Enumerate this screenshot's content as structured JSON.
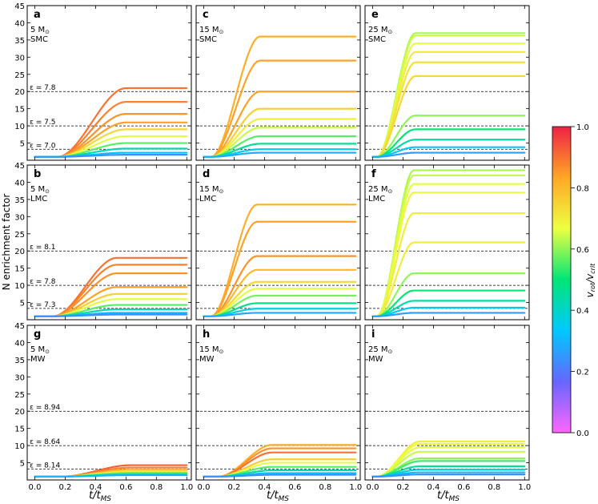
{
  "figure": {
    "ylabel": "N enrichment factor",
    "xlabel": "t/t",
    "xlabel_sub": "MS",
    "colorbar": {
      "label": "v",
      "label_sub1": "rot",
      "label_sep": "/v",
      "label_sub2": "crit",
      "ticks": [
        "0.0",
        "0.2",
        "0.4",
        "0.6",
        "0.8",
        "1.0"
      ],
      "range": [
        0.0,
        1.0
      ],
      "colormap": [
        "#ff66ff",
        "#6666ff",
        "#00c8ff",
        "#00e676",
        "#eeff41",
        "#ffa726",
        "#ee2244"
      ]
    }
  },
  "chart_data": {
    "type": "line",
    "xlim": [
      -0.05,
      1.03
    ],
    "ylim": [
      0,
      45
    ],
    "xticks": [
      "0.0",
      "0.2",
      "0.4",
      "0.6",
      "0.8",
      "1.0"
    ],
    "yticks": [
      "5",
      "10",
      "15",
      "20",
      "25",
      "30",
      "35",
      "40",
      "45"
    ],
    "grid": false,
    "panels": [
      {
        "letter": "a",
        "mass": "5 M",
        "mass_sym": "⊙",
        "galaxy": "SMC",
        "ref_lines": [
          {
            "label": "ε = 7.8",
            "y": 20.0
          },
          {
            "label": "ε = 7.5",
            "y": 10.0
          },
          {
            "label": "ε = 7.0",
            "y": 3.2
          }
        ],
        "onset": 0.15,
        "steep": 0.45,
        "tracks": [
          {
            "omega": 0.9,
            "ymax": 21.0
          },
          {
            "omega": 0.88,
            "ymax": 17.0
          },
          {
            "omega": 0.86,
            "ymax": 13.5
          },
          {
            "omega": 0.84,
            "ymax": 11.0
          },
          {
            "omega": 0.74,
            "ymax": 9.0
          },
          {
            "omega": 0.66,
            "ymax": 7.0
          },
          {
            "omega": 0.56,
            "ymax": 5.0
          },
          {
            "omega": 0.42,
            "ymax": 3.4
          },
          {
            "omega": 0.32,
            "ymax": 2.2
          },
          {
            "omega": 0.24,
            "ymax": 1.6
          }
        ]
      },
      {
        "letter": "c",
        "mass": "15 M",
        "mass_sym": "⊙",
        "galaxy": "SMC",
        "ref_lines": [
          {
            "label": "",
            "y": 20.0
          },
          {
            "label": "",
            "y": 10.0
          },
          {
            "label": "",
            "y": 3.2
          }
        ],
        "onset": 0.05,
        "steep": 0.32,
        "tracks": [
          {
            "omega": 0.82,
            "ymax": 36.0
          },
          {
            "omega": 0.84,
            "ymax": 29.0
          },
          {
            "omega": 0.84,
            "ymax": 20.0
          },
          {
            "omega": 0.76,
            "ymax": 15.0
          },
          {
            "omega": 0.7,
            "ymax": 12.0
          },
          {
            "omega": 0.64,
            "ymax": 9.5
          },
          {
            "omega": 0.56,
            "ymax": 7.0
          },
          {
            "omega": 0.46,
            "ymax": 4.8
          },
          {
            "omega": 0.36,
            "ymax": 3.2
          },
          {
            "omega": 0.28,
            "ymax": 2.2
          }
        ]
      },
      {
        "letter": "e",
        "mass": "25 M",
        "mass_sym": "⊙",
        "galaxy": "SMC",
        "ref_lines": [
          {
            "label": "",
            "y": 20.0
          },
          {
            "label": "",
            "y": 10.0
          },
          {
            "label": "",
            "y": 3.2
          }
        ],
        "onset": 0.03,
        "steep": 0.25,
        "tracks": [
          {
            "omega": 0.62,
            "ymax": 37.0
          },
          {
            "omega": 0.64,
            "ymax": 36.3
          },
          {
            "omega": 0.66,
            "ymax": 34.0
          },
          {
            "omega": 0.7,
            "ymax": 31.5
          },
          {
            "omega": 0.72,
            "ymax": 28.5
          },
          {
            "omega": 0.74,
            "ymax": 24.5
          },
          {
            "omega": 0.6,
            "ymax": 13.0
          },
          {
            "omega": 0.5,
            "ymax": 9.0
          },
          {
            "omega": 0.44,
            "ymax": 6.0
          },
          {
            "omega": 0.34,
            "ymax": 3.8
          },
          {
            "omega": 0.26,
            "ymax": 2.2
          }
        ]
      },
      {
        "letter": "b",
        "mass": "5 M",
        "mass_sym": "⊙",
        "galaxy": "LMC",
        "ref_lines": [
          {
            "label": "ε = 8.1",
            "y": 20.0
          },
          {
            "label": "ε = 7.8",
            "y": 10.0
          },
          {
            "label": "ε = 7.3",
            "y": 3.3
          }
        ],
        "onset": 0.12,
        "steep": 0.42,
        "tracks": [
          {
            "omega": 0.9,
            "ymax": 18.0
          },
          {
            "omega": 0.88,
            "ymax": 16.0
          },
          {
            "omega": 0.86,
            "ymax": 13.5
          },
          {
            "omega": 0.84,
            "ymax": 9.5
          },
          {
            "omega": 0.76,
            "ymax": 7.5
          },
          {
            "omega": 0.66,
            "ymax": 6.0
          },
          {
            "omega": 0.56,
            "ymax": 4.3
          },
          {
            "omega": 0.42,
            "ymax": 3.0
          },
          {
            "omega": 0.3,
            "ymax": 2.0
          },
          {
            "omega": 0.24,
            "ymax": 1.5
          }
        ]
      },
      {
        "letter": "d",
        "mass": "15 M",
        "mass_sym": "⊙",
        "galaxy": "LMC",
        "ref_lines": [
          {
            "label": "",
            "y": 20.0
          },
          {
            "label": "",
            "y": 10.0
          },
          {
            "label": "",
            "y": 3.3
          }
        ],
        "onset": 0.05,
        "steep": 0.3,
        "tracks": [
          {
            "omega": 0.82,
            "ymax": 33.5
          },
          {
            "omega": 0.84,
            "ymax": 28.5
          },
          {
            "omega": 0.86,
            "ymax": 18.5
          },
          {
            "omega": 0.8,
            "ymax": 14.5
          },
          {
            "omega": 0.74,
            "ymax": 11.0
          },
          {
            "omega": 0.66,
            "ymax": 9.0
          },
          {
            "omega": 0.58,
            "ymax": 7.0
          },
          {
            "omega": 0.48,
            "ymax": 4.8
          },
          {
            "omega": 0.38,
            "ymax": 3.2
          },
          {
            "omega": 0.28,
            "ymax": 2.0
          }
        ]
      },
      {
        "letter": "f",
        "mass": "25 M",
        "mass_sym": "⊙",
        "galaxy": "LMC",
        "ref_lines": [
          {
            "label": "",
            "y": 20.0
          },
          {
            "label": "",
            "y": 10.0
          },
          {
            "label": "",
            "y": 3.3
          }
        ],
        "onset": 0.03,
        "steep": 0.24,
        "tracks": [
          {
            "omega": 0.62,
            "ymax": 43.5
          },
          {
            "omega": 0.64,
            "ymax": 42.0
          },
          {
            "omega": 0.66,
            "ymax": 39.5
          },
          {
            "omega": 0.68,
            "ymax": 37.0
          },
          {
            "omega": 0.7,
            "ymax": 31.0
          },
          {
            "omega": 0.7,
            "ymax": 22.5
          },
          {
            "omega": 0.6,
            "ymax": 13.5
          },
          {
            "omega": 0.5,
            "ymax": 8.5
          },
          {
            "omega": 0.44,
            "ymax": 5.5
          },
          {
            "omega": 0.34,
            "ymax": 3.5
          },
          {
            "omega": 0.26,
            "ymax": 2.0
          }
        ]
      },
      {
        "letter": "g",
        "mass": "5 M",
        "mass_sym": "⊙",
        "galaxy": "MW",
        "ref_lines": [
          {
            "label": "ε = 8.94",
            "y": 20.0
          },
          {
            "label": "ε = 8.64",
            "y": 10.0
          },
          {
            "label": "ε = 8.14",
            "y": 3.2
          }
        ],
        "onset": 0.18,
        "steep": 0.45,
        "tracks": [
          {
            "omega": 0.92,
            "ymax": 4.3
          },
          {
            "omega": 0.88,
            "ymax": 3.6
          },
          {
            "omega": 0.8,
            "ymax": 3.0
          },
          {
            "omega": 0.7,
            "ymax": 2.5
          },
          {
            "omega": 0.58,
            "ymax": 2.1
          },
          {
            "omega": 0.44,
            "ymax": 1.7
          },
          {
            "omega": 0.3,
            "ymax": 1.4
          }
        ]
      },
      {
        "letter": "h",
        "mass": "15 M",
        "mass_sym": "⊙",
        "galaxy": "MW",
        "ref_lines": [
          {
            "label": "",
            "y": 20.0
          },
          {
            "label": "",
            "y": 10.0
          },
          {
            "label": "",
            "y": 3.2
          }
        ],
        "onset": 0.1,
        "steep": 0.35,
        "tracks": [
          {
            "omega": 0.82,
            "ymax": 10.2
          },
          {
            "omega": 0.86,
            "ymax": 9.2
          },
          {
            "omega": 0.9,
            "ymax": 8.0
          },
          {
            "omega": 0.76,
            "ymax": 6.0
          },
          {
            "omega": 0.66,
            "ymax": 5.0
          },
          {
            "omega": 0.56,
            "ymax": 3.8
          },
          {
            "omega": 0.44,
            "ymax": 2.8
          },
          {
            "omega": 0.32,
            "ymax": 2.0
          },
          {
            "omega": 0.24,
            "ymax": 1.5
          }
        ]
      },
      {
        "letter": "i",
        "mass": "25 M",
        "mass_sym": "⊙",
        "galaxy": "MW",
        "ref_lines": [
          {
            "label": "",
            "y": 20.0
          },
          {
            "label": "",
            "y": 10.0
          },
          {
            "label": "",
            "y": 3.2
          }
        ],
        "onset": 0.03,
        "steep": 0.28,
        "tracks": [
          {
            "omega": 0.7,
            "ymax": 11.2
          },
          {
            "omega": 0.68,
            "ymax": 10.5
          },
          {
            "omega": 0.66,
            "ymax": 9.5
          },
          {
            "omega": 0.64,
            "ymax": 8.2
          },
          {
            "omega": 0.6,
            "ymax": 6.3
          },
          {
            "omega": 0.54,
            "ymax": 5.5
          },
          {
            "omega": 0.46,
            "ymax": 4.0
          },
          {
            "omega": 0.38,
            "ymax": 3.0
          },
          {
            "omega": 0.3,
            "ymax": 2.2
          },
          {
            "omega": 0.24,
            "ymax": 1.6
          }
        ]
      }
    ]
  }
}
